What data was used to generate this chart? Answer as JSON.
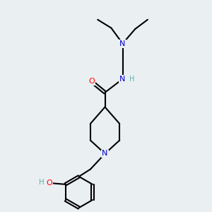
{
  "background_color": "#eaeff1",
  "bond_color": "#000000",
  "atom_colors": {
    "N": "#0000cc",
    "O": "#ff0000",
    "C": "#000000",
    "H": "#5ab4ac"
  },
  "figsize": [
    3.0,
    3.0
  ],
  "dpi": 100
}
